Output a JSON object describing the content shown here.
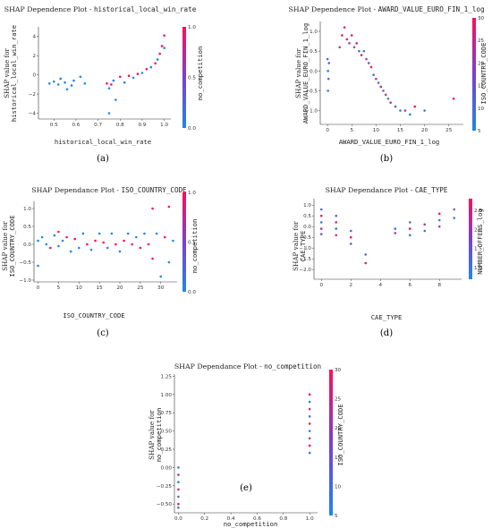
{
  "colors": {
    "low": "#1e88e5",
    "high": "#ff0d57"
  },
  "chart_data": [
    {
      "id": "a",
      "type": "scatter",
      "caption": "(a)",
      "title_prefix": "SHAP Dependence Plot - ",
      "title_feature": "historical_local_win_rate",
      "xlabel": "historical_local_win_rate",
      "ylabel_line1": "SHAP value for",
      "ylabel_line2": "historical_local_win_rate",
      "colorbar_label": "no_competition",
      "xlim": [
        0.43,
        1.03
      ],
      "ylim": [
        -4.6,
        5.0
      ],
      "xticks": [
        0.5,
        0.6,
        0.7,
        0.8,
        0.9,
        1.0
      ],
      "xtick_labels": [
        "0.5",
        "0.6",
        "0.7",
        "0.8",
        "0.9",
        "1.0"
      ],
      "yticks": [
        -4,
        -2,
        0,
        2,
        4
      ],
      "ytick_labels": [
        "−4",
        "−2",
        "0",
        "2",
        "4"
      ],
      "clim": [
        0.0,
        1.0
      ],
      "cticks": [
        0.0,
        0.5,
        1.0
      ],
      "ctick_labels": [
        "0.0",
        "0.5",
        "1.0"
      ],
      "points": [
        [
          0.48,
          -0.9,
          0
        ],
        [
          0.5,
          -0.7,
          0
        ],
        [
          0.52,
          -1.0,
          0
        ],
        [
          0.53,
          -0.4,
          0
        ],
        [
          0.55,
          -0.8,
          0
        ],
        [
          0.56,
          -1.5,
          0
        ],
        [
          0.58,
          -1.1,
          0
        ],
        [
          0.59,
          -0.6,
          0
        ],
        [
          0.62,
          -0.2,
          0
        ],
        [
          0.64,
          -0.9,
          0
        ],
        [
          0.74,
          -0.9,
          1
        ],
        [
          0.75,
          -1.4,
          0
        ],
        [
          0.75,
          -4.0,
          0
        ],
        [
          0.76,
          -1.0,
          1
        ],
        [
          0.77,
          -0.6,
          0
        ],
        [
          0.78,
          -2.6,
          0
        ],
        [
          0.8,
          -0.2,
          1
        ],
        [
          0.82,
          -0.8,
          0
        ],
        [
          0.84,
          -0.1,
          1
        ],
        [
          0.86,
          -0.3,
          0
        ],
        [
          0.88,
          0.1,
          1
        ],
        [
          0.9,
          0.2,
          0
        ],
        [
          0.92,
          0.6,
          1
        ],
        [
          0.94,
          0.8,
          0
        ],
        [
          0.96,
          1.2,
          1
        ],
        [
          0.97,
          1.6,
          0
        ],
        [
          0.98,
          2.2,
          1
        ],
        [
          0.99,
          3.0,
          1
        ],
        [
          1.0,
          4.1,
          1
        ],
        [
          1.0,
          2.8,
          0
        ]
      ]
    },
    {
      "id": "b",
      "type": "scatter",
      "caption": "(b)",
      "title_prefix": "SHAP Dependence Plot - ",
      "title_feature": "AWARD_VALUE_EURO_FIN_1_log",
      "xlabel": "AWARD_VALUE_EURO_FIN_1_log",
      "ylabel_line1": "SHAP value for",
      "ylabel_line2": "AWARD_VALUE_EURO_FIN_1_log",
      "colorbar_label": "ISO_COUNTRY_CODE",
      "xlim": [
        -1.5,
        28
      ],
      "ylim": [
        -1.35,
        1.25
      ],
      "xticks": [
        0,
        5,
        10,
        15,
        20,
        25
      ],
      "xtick_labels": [
        "0",
        "5",
        "10",
        "15",
        "20",
        "25"
      ],
      "yticks": [
        -1.0,
        -0.5,
        0.0,
        0.5,
        1.0
      ],
      "ytick_labels": [
        "−1.0",
        "−0.5",
        "0.0",
        "0.5",
        "1.0"
      ],
      "clim": [
        5,
        30
      ],
      "cticks": [
        5,
        10,
        15,
        20,
        25,
        30
      ],
      "ctick_labels": [
        "5",
        "10",
        "15",
        "20",
        "25",
        "30"
      ],
      "points": [
        [
          0.0,
          0.3,
          8
        ],
        [
          0.1,
          0.0,
          6
        ],
        [
          0.2,
          -0.2,
          10
        ],
        [
          0.3,
          0.2,
          12
        ],
        [
          0.1,
          -0.5,
          7
        ],
        [
          2.5,
          0.6,
          20
        ],
        [
          3.0,
          0.9,
          25
        ],
        [
          3.5,
          1.1,
          28
        ],
        [
          4.0,
          0.8,
          22
        ],
        [
          4.5,
          0.7,
          18
        ],
        [
          5.0,
          0.9,
          26
        ],
        [
          5.5,
          0.6,
          15
        ],
        [
          6.0,
          0.7,
          24
        ],
        [
          6.5,
          0.5,
          10
        ],
        [
          7.0,
          0.4,
          27
        ],
        [
          7.5,
          0.5,
          9
        ],
        [
          8.0,
          0.3,
          20
        ],
        [
          8.5,
          0.2,
          12
        ],
        [
          9.0,
          0.1,
          28
        ],
        [
          9.5,
          -0.1,
          8
        ],
        [
          10.0,
          -0.2,
          22
        ],
        [
          10.5,
          -0.3,
          11
        ],
        [
          11.0,
          -0.4,
          26
        ],
        [
          11.5,
          -0.5,
          9
        ],
        [
          12.0,
          -0.6,
          18
        ],
        [
          12.5,
          -0.7,
          7
        ],
        [
          13.0,
          -0.8,
          25
        ],
        [
          14.0,
          -0.9,
          10
        ],
        [
          15.0,
          -1.0,
          8
        ],
        [
          16.0,
          -1.0,
          20
        ],
        [
          17.0,
          -1.1,
          6
        ],
        [
          18.0,
          -0.9,
          28
        ],
        [
          20.0,
          -1.0,
          9
        ],
        [
          26.0,
          -0.7,
          30
        ]
      ]
    },
    {
      "id": "c",
      "type": "scatter",
      "caption": "(c)",
      "title_prefix": "SHAP Dependance Plot - ",
      "title_feature": "ISO_COUNTRY_CODE",
      "xlabel": "ISO_COUNTRY_CODE",
      "ylabel_line1": "SHAP value for",
      "ylabel_line2": "ISO_COUNTRY_CODE",
      "colorbar_label": "no_competition",
      "xlim": [
        -1,
        34
      ],
      "ylim": [
        -1.05,
        1.2
      ],
      "xticks": [
        0,
        5,
        10,
        15,
        20,
        25,
        30
      ],
      "xtick_labels": [
        "0",
        "5",
        "10",
        "15",
        "20",
        "25",
        "30"
      ],
      "yticks": [
        -1.0,
        -0.5,
        0.0,
        0.5,
        1.0
      ],
      "ytick_labels": [
        "−1.0",
        "−0.5",
        "0.0",
        "0.5",
        "1.0"
      ],
      "clim": [
        0.0,
        1.0
      ],
      "cticks": [
        0.0,
        0.5,
        1.0
      ],
      "ctick_labels": [
        "0.0",
        "0.5",
        "1.0"
      ],
      "points": [
        [
          0,
          0.1,
          0
        ],
        [
          0,
          -0.6,
          0
        ],
        [
          1,
          0.2,
          0
        ],
        [
          2,
          0.0,
          0
        ],
        [
          3,
          -0.1,
          1
        ],
        [
          4,
          0.25,
          0
        ],
        [
          5,
          0.35,
          1
        ],
        [
          5,
          -0.05,
          0
        ],
        [
          6,
          0.1,
          0
        ],
        [
          7,
          0.2,
          1
        ],
        [
          8,
          -0.2,
          0
        ],
        [
          9,
          0.15,
          1
        ],
        [
          10,
          -0.1,
          0
        ],
        [
          11,
          0.3,
          0
        ],
        [
          12,
          0.0,
          1
        ],
        [
          13,
          -0.15,
          0
        ],
        [
          14,
          0.1,
          1
        ],
        [
          15,
          0.3,
          0
        ],
        [
          16,
          0.05,
          1
        ],
        [
          17,
          -0.1,
          0
        ],
        [
          18,
          0.3,
          0
        ],
        [
          19,
          0.0,
          1
        ],
        [
          20,
          -0.2,
          0
        ],
        [
          21,
          0.1,
          1
        ],
        [
          22,
          0.3,
          0
        ],
        [
          23,
          0.0,
          1
        ],
        [
          24,
          0.2,
          0
        ],
        [
          25,
          -0.1,
          1
        ],
        [
          26,
          0.3,
          0
        ],
        [
          27,
          0.0,
          1
        ],
        [
          28,
          1.0,
          1
        ],
        [
          28,
          -0.4,
          1
        ],
        [
          29,
          0.3,
          0
        ],
        [
          30,
          -0.9,
          0
        ],
        [
          31,
          0.2,
          1
        ],
        [
          32,
          1.05,
          1
        ],
        [
          32,
          -0.5,
          0
        ],
        [
          33,
          0.1,
          0
        ]
      ]
    },
    {
      "id": "d",
      "type": "scatter",
      "caption": "(d)",
      "title_prefix": "SHAP Dependance Plot - ",
      "title_feature": "CAE_TYPE",
      "xlabel": "CAE_TYPE",
      "ylabel_line1": "SHAP value for",
      "ylabel_line2": "CAE_TYPE",
      "colorbar_label": "NUMBER_OFFERS_log",
      "xlim": [
        -0.5,
        9.5
      ],
      "ylim": [
        -2.45,
        1.3
      ],
      "xticks": [
        0,
        2,
        4,
        6,
        8
      ],
      "xtick_labels": [
        "0",
        "2",
        "4",
        "6",
        "8"
      ],
      "yticks": [
        -2.0,
        -1.5,
        -1.0,
        -0.5,
        0.0,
        0.5,
        1.0
      ],
      "ytick_labels": [
        "−2.0",
        "−1.5",
        "−1.0",
        "−0.5",
        "0.0",
        "0.5",
        "1.0"
      ],
      "clim": [
        0.7,
        2.8
      ],
      "cticks": [
        1.0,
        1.5,
        2.0,
        2.5
      ],
      "ctick_labels": [
        "1.0",
        "1.5",
        "2.0",
        "2.5"
      ],
      "points": [
        [
          0,
          0.8,
          1.2
        ],
        [
          0,
          0.5,
          2.3
        ],
        [
          0,
          0.2,
          1.0
        ],
        [
          0,
          -0.1,
          2.0
        ],
        [
          0,
          -0.35,
          1.4
        ],
        [
          1,
          0.5,
          1.3
        ],
        [
          1,
          0.2,
          2.5
        ],
        [
          1,
          -0.1,
          1.0
        ],
        [
          1,
          -0.4,
          2.2
        ],
        [
          2,
          -0.2,
          1.1
        ],
        [
          2,
          -0.5,
          2.6
        ],
        [
          2,
          -0.8,
          1.5
        ],
        [
          3,
          -1.3,
          1.2
        ],
        [
          3,
          -1.7,
          2.4
        ],
        [
          5,
          -0.1,
          1.0
        ],
        [
          5,
          -0.3,
          2.1
        ],
        [
          6,
          0.2,
          1.3
        ],
        [
          6,
          -0.1,
          2.6
        ],
        [
          6,
          -0.4,
          1.0
        ],
        [
          7,
          0.1,
          2.0
        ],
        [
          7,
          -0.2,
          1.2
        ],
        [
          8,
          0.6,
          2.7
        ],
        [
          8,
          0.3,
          1.1
        ],
        [
          8,
          0.0,
          1.8
        ],
        [
          9,
          0.8,
          1.4
        ],
        [
          9,
          0.4,
          1.0
        ]
      ]
    },
    {
      "id": "e",
      "type": "scatter",
      "caption": "(e)",
      "title_prefix": "SHAP Dependance Plot - ",
      "title_feature": "no_competition",
      "xlabel": "no_competition",
      "ylabel_line1": "SHAP value for",
      "ylabel_line2": "no_competition",
      "colorbar_label": "ISO_COUNTRY_CODE",
      "xlim": [
        -0.03,
        1.06
      ],
      "ylim": [
        -0.62,
        1.28
      ],
      "xticks": [
        0.0,
        0.2,
        0.4,
        0.6,
        0.8,
        1.0
      ],
      "xtick_labels": [
        "0.0",
        "0.2",
        "0.4",
        "0.6",
        "0.8",
        "1.0"
      ],
      "yticks": [
        -0.5,
        -0.25,
        0.0,
        0.25,
        0.5,
        0.75,
        1.0,
        1.25
      ],
      "ytick_labels": [
        "−0.50",
        "−0.25",
        "0.00",
        "0.25",
        "0.50",
        "0.75",
        "1.00",
        "1.25"
      ],
      "clim": [
        5,
        30
      ],
      "cticks": [
        5,
        10,
        15,
        20,
        25,
        30
      ],
      "ctick_labels": [
        "5",
        "10",
        "15",
        "20",
        "25",
        "30"
      ],
      "points": [
        [
          0.0,
          0.0,
          8
        ],
        [
          0.0,
          -0.1,
          20
        ],
        [
          0.0,
          -0.2,
          6
        ],
        [
          0.0,
          -0.3,
          26
        ],
        [
          0.0,
          -0.4,
          12
        ],
        [
          0.0,
          -0.5,
          28
        ],
        [
          0.0,
          -0.55,
          9
        ],
        [
          1.0,
          1.0,
          27
        ],
        [
          1.0,
          0.9,
          8
        ],
        [
          1.0,
          0.8,
          22
        ],
        [
          1.0,
          0.7,
          10
        ],
        [
          1.0,
          0.6,
          25
        ],
        [
          1.0,
          0.5,
          7
        ],
        [
          1.0,
          0.4,
          18
        ],
        [
          1.0,
          0.3,
          29
        ],
        [
          1.0,
          0.2,
          9
        ]
      ]
    }
  ]
}
